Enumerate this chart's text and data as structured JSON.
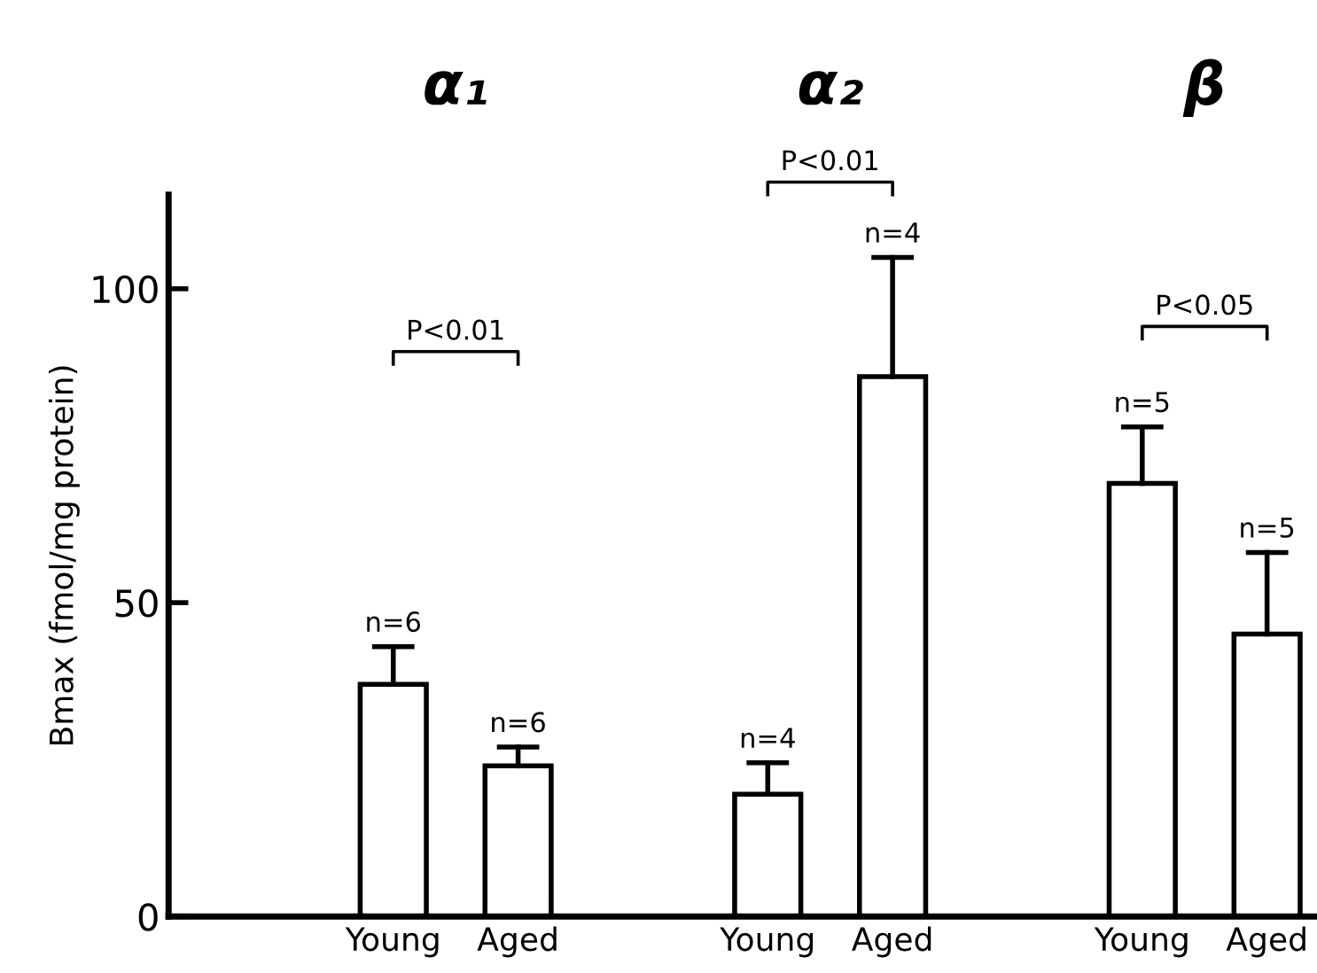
{
  "chart_data": {
    "type": "bar",
    "ylabel": "Bmax (fmol/mg protein)",
    "categories": [
      "Young",
      "Aged",
      "Young",
      "Aged",
      "Young",
      "Aged"
    ],
    "values": [
      37,
      24,
      19.5,
      86,
      69,
      45
    ],
    "errors": [
      [
        37,
        43
      ],
      [
        24,
        27
      ],
      [
        19.5,
        24.5
      ],
      [
        86,
        105
      ],
      [
        69,
        78
      ],
      [
        45,
        58
      ]
    ],
    "color": "#ffffff",
    "ylim": [
      0,
      115
    ],
    "yticks": [
      0,
      50,
      100
    ],
    "annotations": [
      "α₁",
      "α₂",
      "β",
      "P<0.01",
      "P<0.01",
      "P<0.05",
      "n=6",
      "n=6",
      "n=4",
      "n=4",
      "n=5",
      "n=5"
    ],
    "grid": false,
    "legend": false
  }
}
